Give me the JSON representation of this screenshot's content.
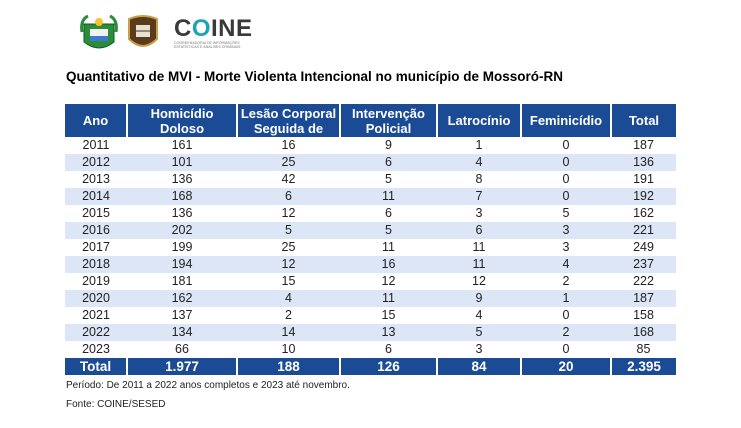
{
  "logos": {
    "state_crest": "Brasão RN",
    "police_badge": "SESED",
    "coine_name": "COINE",
    "coine_subtitle": "COORDENADORIA DE INFORMAÇÕES ESTATÍSTICAS E ANÁLISES CRIMINAIS"
  },
  "title": "Quantitativo de MVI - Morte Violenta Intencional no município de Mossoró-RN",
  "table": {
    "headers": [
      "Ano",
      "Homicídio Doloso",
      "Lesão Corporal Seguida de",
      "Intervenção Policial",
      "Latrocínio",
      "Feminicídio",
      "Total"
    ],
    "rows": [
      [
        "2011",
        "161",
        "16",
        "9",
        "1",
        "0",
        "187"
      ],
      [
        "2012",
        "101",
        "25",
        "6",
        "4",
        "0",
        "136"
      ],
      [
        "2013",
        "136",
        "42",
        "5",
        "8",
        "0",
        "191"
      ],
      [
        "2014",
        "168",
        "6",
        "11",
        "7",
        "0",
        "192"
      ],
      [
        "2015",
        "136",
        "12",
        "6",
        "3",
        "5",
        "162"
      ],
      [
        "2016",
        "202",
        "5",
        "5",
        "6",
        "3",
        "221"
      ],
      [
        "2017",
        "199",
        "25",
        "11",
        "11",
        "3",
        "249"
      ],
      [
        "2018",
        "194",
        "12",
        "16",
        "11",
        "4",
        "237"
      ],
      [
        "2019",
        "181",
        "15",
        "12",
        "12",
        "2",
        "222"
      ],
      [
        "2020",
        "162",
        "4",
        "11",
        "9",
        "1",
        "187"
      ],
      [
        "2021",
        "137",
        "2",
        "15",
        "4",
        "0",
        "158"
      ],
      [
        "2022",
        "134",
        "14",
        "13",
        "5",
        "2",
        "168"
      ],
      [
        "2023",
        "66",
        "10",
        "6",
        "3",
        "0",
        "85"
      ]
    ],
    "total": [
      "Total",
      "1.977",
      "188",
      "126",
      "84",
      "20",
      "2.395"
    ]
  },
  "footnote": "Período: De 2011 a 2022 anos completos e 2023 até novembro.",
  "source": "Fonte: COINE/SESED"
}
